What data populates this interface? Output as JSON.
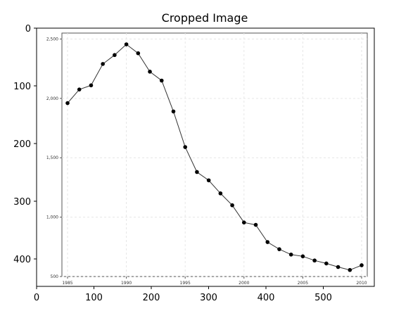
{
  "figure_title": "Cropped Image",
  "outer_axes": {
    "x_ticks": [
      "0",
      "100",
      "200",
      "300",
      "400",
      "500"
    ],
    "y_ticks": [
      "0",
      "100",
      "200",
      "300",
      "400"
    ]
  },
  "chart_data": {
    "type": "line",
    "title": "",
    "xlabel": "",
    "ylabel": "",
    "xlim": [
      1985,
      2010
    ],
    "ylim": [
      500,
      2550
    ],
    "x_tick_labels": [
      "1985",
      "1990",
      "1995",
      "2000",
      "2005",
      "2010"
    ],
    "y_tick_labels": [
      "500",
      "1,000",
      "1,500",
      "2,000",
      "2,500"
    ],
    "grid": true,
    "series": [
      {
        "x": [
          1985,
          1986,
          1987,
          1988,
          1989,
          1990,
          1991,
          1992,
          1993,
          1994,
          1995,
          1996,
          1997,
          1998,
          1999,
          2000,
          2001,
          2002,
          2003,
          2004,
          2005,
          2006,
          2007,
          2008,
          2009,
          2010
        ],
        "values": [
          1960,
          2075,
          2110,
          2290,
          2365,
          2455,
          2380,
          2225,
          2150,
          1890,
          1590,
          1380,
          1310,
          1200,
          1100,
          955,
          935,
          790,
          730,
          685,
          670,
          635,
          610,
          580,
          555,
          595
        ]
      }
    ]
  }
}
